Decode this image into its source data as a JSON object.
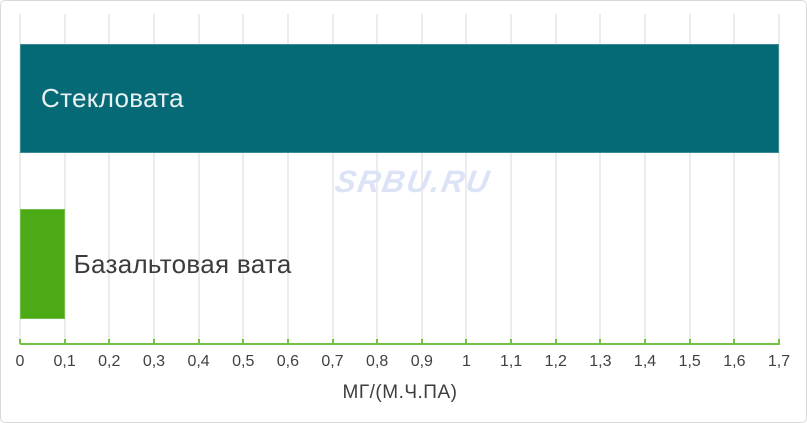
{
  "watermark": {
    "text": "SRBU.RU",
    "color": "#dce3f7"
  },
  "chart_data": {
    "type": "bar",
    "orientation": "horizontal",
    "title": "",
    "xlabel": "МГ/(М.Ч.ПА)",
    "categories": [
      "Стекловата",
      "Базальтовая вата"
    ],
    "values": [
      1.7,
      0.1
    ],
    "xlim": [
      0,
      1.7
    ],
    "tick_step": 0.1,
    "x_tick_labels": [
      "0",
      "0,1",
      "0,2",
      "0,3",
      "0,4",
      "0,5",
      "0,6",
      "0,7",
      "0,8",
      "0,9",
      "1",
      "1,1",
      "1,2",
      "1,3",
      "1,4",
      "1,5",
      "1,6",
      "1,7"
    ],
    "grid": true,
    "legend": false,
    "bar_colors": [
      "#066a76",
      "#4caa16"
    ],
    "bar_label_colors": [
      "#eaf1f2",
      "#3c3c3c"
    ],
    "bar_label_inside": [
      true,
      false
    ],
    "axis_color": "#72c243",
    "gridline_color": "#ececec",
    "tick_text_color": "#414141",
    "xlabel_color": "#3d3d3d"
  }
}
